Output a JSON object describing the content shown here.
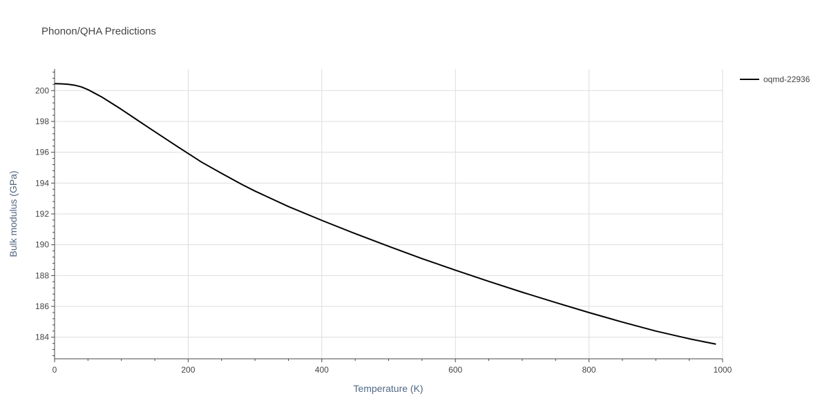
{
  "chart_data": {
    "type": "line",
    "title": "Phonon/QHA Predictions",
    "xlabel": "Temperature (K)",
    "ylabel": "Bulk modulus (GPa)",
    "xlim": [
      0,
      1000
    ],
    "ylim": [
      182.6,
      201.4
    ],
    "x_ticks": [
      0,
      200,
      400,
      600,
      800,
      1000
    ],
    "y_ticks": [
      184,
      186,
      188,
      190,
      192,
      194,
      196,
      198,
      200
    ],
    "grid": true,
    "legend_position": "top-right",
    "series": [
      {
        "name": "oqmd-22936",
        "color": "#000000",
        "x": [
          0,
          10,
          20,
          30,
          40,
          50,
          60,
          70,
          80,
          100,
          120,
          140,
          160,
          180,
          200,
          220,
          250,
          280,
          300,
          350,
          400,
          450,
          500,
          550,
          600,
          650,
          700,
          750,
          800,
          850,
          900,
          950,
          990
        ],
        "y": [
          200.45,
          200.44,
          200.41,
          200.35,
          200.24,
          200.06,
          199.83,
          199.6,
          199.33,
          198.78,
          198.2,
          197.62,
          197.05,
          196.48,
          195.92,
          195.36,
          194.63,
          193.92,
          193.48,
          192.48,
          191.58,
          190.72,
          189.9,
          189.1,
          188.35,
          187.62,
          186.92,
          186.25,
          185.6,
          184.98,
          184.4,
          183.9,
          183.55
        ]
      }
    ]
  }
}
